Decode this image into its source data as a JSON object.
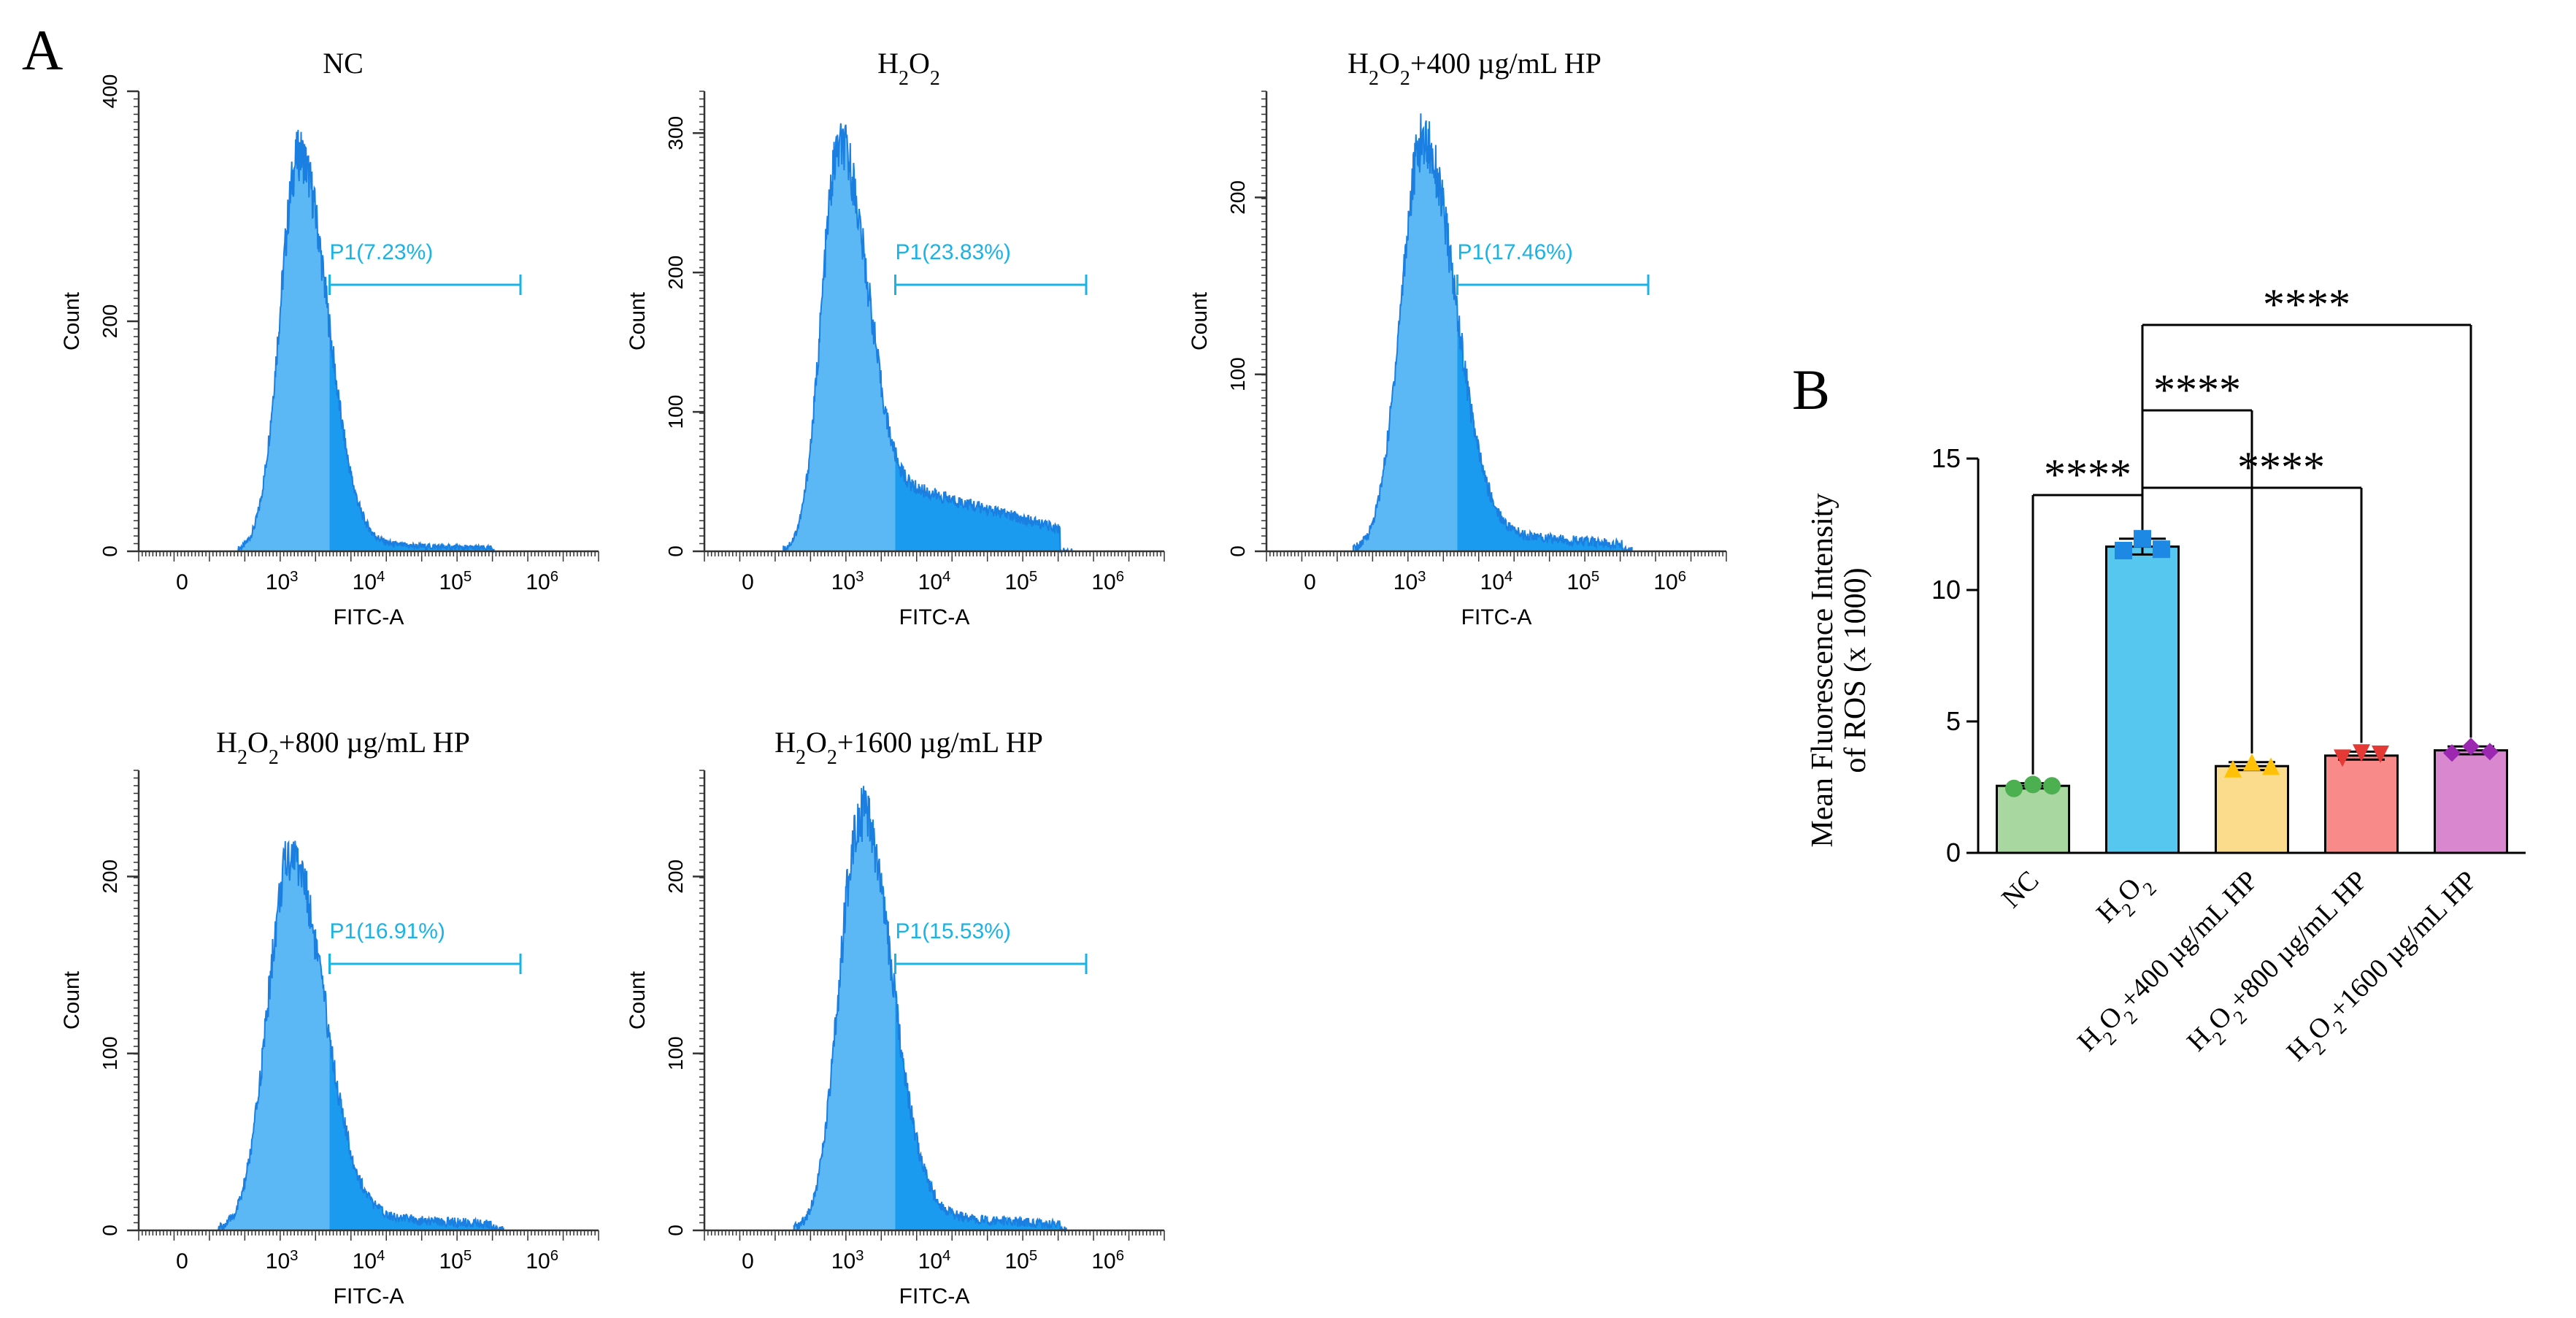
{
  "figure": {
    "panel_a_letter": "A",
    "panel_b_letter": "B"
  },
  "colors": {
    "histogram_fill": "#5bb8f5",
    "histogram_fill_gate": "#1a9bf0",
    "histogram_edge": "#1a7fe0",
    "gate_line": "#1ab3e6",
    "axis": "#333333"
  },
  "chart_data": [
    {
      "type": "area",
      "title": "NC",
      "title_parts": [
        "NC"
      ],
      "xlabel": "FITC-A",
      "ylabel": "Count",
      "ylim": [
        0,
        400
      ],
      "yticks": [
        0,
        200,
        400
      ],
      "xtick_labels": [
        {
          "base": "0",
          "exp": ""
        },
        {
          "base": "10",
          "exp": "3"
        },
        {
          "base": "10",
          "exp": "4"
        },
        {
          "base": "10",
          "exp": "5"
        },
        {
          "base": "10",
          "exp": "6"
        }
      ],
      "gate": {
        "label": "P1(7.23%)",
        "percent": 7.23,
        "x_start_log": 3.55,
        "x_end_log": 5.75
      },
      "peak_log": 3.2,
      "peak_count": 345,
      "spread_left": 0.22,
      "spread_right": 0.32,
      "tail_count": 6
    },
    {
      "type": "area",
      "title": "H2O2",
      "title_parts": [
        "H",
        "2",
        "O",
        "2"
      ],
      "xlabel": "FITC-A",
      "ylabel": "Count",
      "ylim": [
        0,
        330
      ],
      "yticks": [
        0,
        100,
        200,
        300
      ],
      "xtick_labels": [
        {
          "base": "0",
          "exp": ""
        },
        {
          "base": "10",
          "exp": "3"
        },
        {
          "base": "10",
          "exp": "4"
        },
        {
          "base": "10",
          "exp": "5"
        },
        {
          "base": "10",
          "exp": "6"
        }
      ],
      "gate": {
        "label": "P1(23.83%)",
        "percent": 23.83,
        "x_start_log": 3.55,
        "x_end_log": 5.75
      },
      "peak_log": 2.9,
      "peak_count": 288,
      "spread_left": 0.2,
      "spread_right": 0.3,
      "tail_count": 42
    },
    {
      "type": "area",
      "title": "H2O2+400 µg/mL HP",
      "title_parts": [
        "H",
        "2",
        "O",
        "2",
        "+400 µg/mL HP"
      ],
      "xlabel": "FITC-A",
      "ylabel": "Count",
      "ylim": [
        0,
        260
      ],
      "yticks": [
        0,
        100,
        200
      ],
      "xtick_labels": [
        {
          "base": "0",
          "exp": ""
        },
        {
          "base": "10",
          "exp": "3"
        },
        {
          "base": "10",
          "exp": "4"
        },
        {
          "base": "10",
          "exp": "5"
        },
        {
          "base": "10",
          "exp": "6"
        }
      ],
      "gate": {
        "label": "P1(17.46%)",
        "percent": 17.46,
        "x_start_log": 3.55,
        "x_end_log": 5.75
      },
      "peak_log": 3.15,
      "peak_count": 232,
      "spread_left": 0.25,
      "spread_right": 0.36,
      "tail_count": 10
    },
    {
      "type": "area",
      "title": "H2O2+800 µg/mL HP",
      "title_parts": [
        "H",
        "2",
        "O",
        "2",
        "+800 µg/mL HP"
      ],
      "xlabel": "FITC-A",
      "ylabel": "Count",
      "ylim": [
        0,
        260
      ],
      "yticks": [
        0,
        100,
        200
      ],
      "xtick_labels": [
        {
          "base": "0",
          "exp": ""
        },
        {
          "base": "10",
          "exp": "3"
        },
        {
          "base": "10",
          "exp": "4"
        },
        {
          "base": "10",
          "exp": "5"
        },
        {
          "base": "10",
          "exp": "6"
        }
      ],
      "gate": {
        "label": "P1(16.91%)",
        "percent": 16.91,
        "x_start_log": 3.55,
        "x_end_log": 5.75
      },
      "peak_log": 3.1,
      "peak_count": 212,
      "spread_left": 0.26,
      "spread_right": 0.37,
      "tail_count": 8
    },
    {
      "type": "area",
      "title": "H2O2+1600 µg/mL HP",
      "title_parts": [
        "H",
        "2",
        "O",
        "2",
        "+1600 µg/mL HP"
      ],
      "xlabel": "FITC-A",
      "ylabel": "Count",
      "ylim": [
        0,
        260
      ],
      "yticks": [
        0,
        100,
        200
      ],
      "xtick_labels": [
        {
          "base": "0",
          "exp": ""
        },
        {
          "base": "10",
          "exp": "3"
        },
        {
          "base": "10",
          "exp": "4"
        },
        {
          "base": "10",
          "exp": "5"
        },
        {
          "base": "10",
          "exp": "6"
        }
      ],
      "gate": {
        "label": "P1(15.53%)",
        "percent": 15.53,
        "x_start_log": 3.55,
        "x_end_log": 5.75
      },
      "peak_log": 3.15,
      "peak_count": 236,
      "spread_left": 0.24,
      "spread_right": 0.35,
      "tail_count": 8
    },
    {
      "type": "bar",
      "title": "",
      "ylabel_line1": "Mean Fluorescence Intensity",
      "ylabel_line2": "of ROS (x 1000)",
      "ylim": [
        0,
        15
      ],
      "yticks": [
        0,
        5,
        10,
        15
      ],
      "categories": [
        {
          "label": "NC",
          "parts": [
            "NC"
          ]
        },
        {
          "label": "H2O2",
          "parts": [
            "H",
            "2",
            "O",
            "2"
          ]
        },
        {
          "label": "H2O2+400 µg/mL HP",
          "parts": [
            "H",
            "2",
            "O",
            "2",
            "+400 µg/mL HP"
          ]
        },
        {
          "label": "H2O2+800 µg/mL HP",
          "parts": [
            "H",
            "2",
            "O",
            "2",
            "+800 µg/mL HP"
          ]
        },
        {
          "label": "H2O2+1600 µg/mL HP",
          "parts": [
            "H",
            "2",
            "O",
            "2",
            "+1600 µg/mL HP"
          ]
        }
      ],
      "values": [
        2.55,
        11.65,
        3.3,
        3.7,
        3.9
      ],
      "errors": [
        0.1,
        0.3,
        0.15,
        0.15,
        0.15
      ],
      "points": [
        [
          2.45,
          2.6,
          2.55
        ],
        [
          11.5,
          11.95,
          11.55
        ],
        [
          3.2,
          3.45,
          3.3
        ],
        [
          3.6,
          3.8,
          3.75
        ],
        [
          3.8,
          4.05,
          3.85
        ]
      ],
      "bar_colors": [
        "#a8d8a0",
        "#56c8f0",
        "#fbdc8c",
        "#f98a8a",
        "#d988d0"
      ],
      "point_colors": [
        "#4caf50",
        "#1e88e5",
        "#ffc107",
        "#e53935",
        "#9c27b0"
      ],
      "point_shapes": [
        "circle",
        "square",
        "triangle",
        "triangle-down",
        "diamond"
      ],
      "significance": [
        {
          "from": 0,
          "to": 1,
          "label": "****",
          "level": 0
        },
        {
          "from": 1,
          "to": 2,
          "label": "****",
          "level": 2
        },
        {
          "from": 1,
          "to": 3,
          "label": "****",
          "level": 1
        },
        {
          "from": 1,
          "to": 4,
          "label": "****",
          "level": 3
        }
      ]
    }
  ]
}
